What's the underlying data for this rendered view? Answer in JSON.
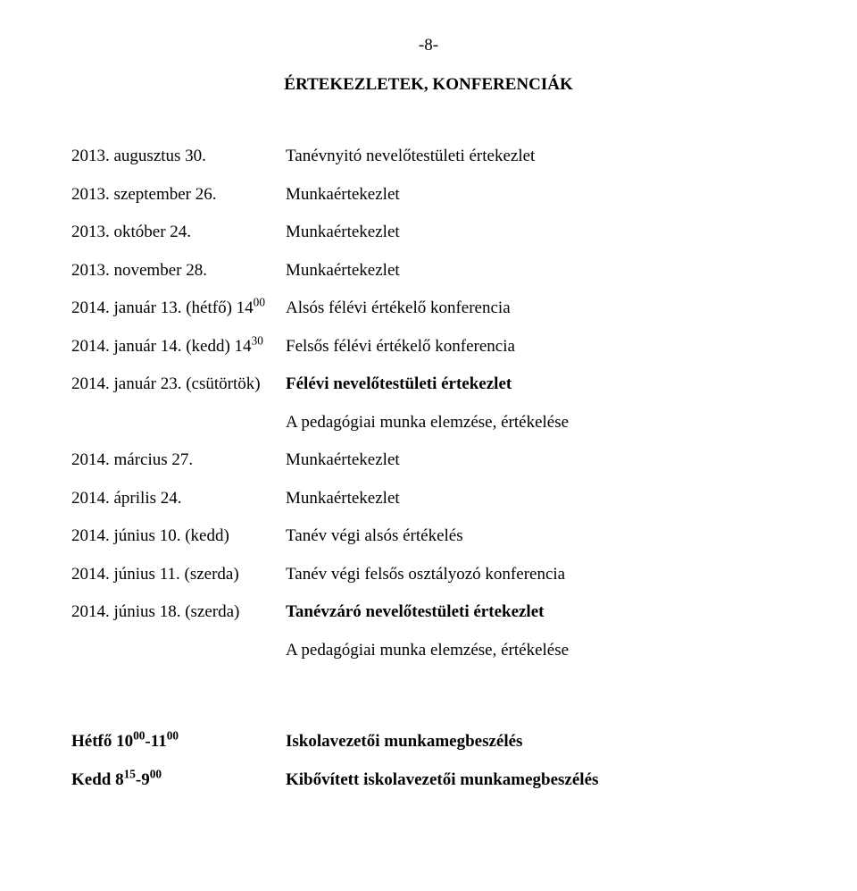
{
  "pageNumber": "-8-",
  "mainTitle": "ÉRTEKEZLETEK, KONFERENCIÁK",
  "schedule": [
    {
      "date": "2013. augusztus 30.",
      "desc": "Tanévnyitó nevelőtestületi értekezlet",
      "bold": false,
      "extra": null
    },
    {
      "date": "2013. szeptember 26.",
      "desc": "Munkaértekezlet",
      "bold": false,
      "extra": null
    },
    {
      "date": "2013. október 24.",
      "desc": "Munkaértekezlet",
      "bold": false,
      "extra": null
    },
    {
      "date": "2013. november 28.",
      "desc": "Munkaértekezlet",
      "bold": false,
      "extra": null
    },
    {
      "datePre": "2014. január 13. (hétfő) 14",
      "dateSup": "00",
      "desc": "Alsós félévi értékelő konferencia",
      "bold": false,
      "extra": null
    },
    {
      "datePre": "2014. január 14. (kedd) 14",
      "dateSup": "30",
      "desc": "Felsős félévi értékelő konferencia",
      "bold": false,
      "extra": null
    },
    {
      "date": "2014. január 23. (csütörtök)",
      "desc": "Félévi nevelőtestületi értekezlet",
      "bold": true,
      "extra": "A pedagógiai munka elemzése, értékelése"
    },
    {
      "date": "2014. március 27.",
      "desc": "Munkaértekezlet",
      "bold": false,
      "extra": null
    },
    {
      "date": "2014. április 24.",
      "desc": "Munkaértekezlet",
      "bold": false,
      "extra": null
    },
    {
      "date": "2014. június 10. (kedd)",
      "desc": "Tanév végi alsós értékelés",
      "bold": false,
      "extra": null
    },
    {
      "date": "2014. június 11. (szerda)",
      "desc": "Tanév végi felsős osztályozó konferencia",
      "bold": false,
      "extra": null
    },
    {
      "date": "2014. június 18. (szerda)",
      "desc": "Tanévzáró nevelőtestületi értekezlet",
      "bold": true,
      "extra": "A pedagógiai munka elemzése, értékelése"
    }
  ],
  "bottom": [
    {
      "datePre": "Hétfő 10",
      "dateSup1": "00",
      "dateMid": "-11",
      "dateSup2": "00",
      "desc": "Iskolavezetői munkamegbeszélés"
    },
    {
      "datePre": "Kedd 8",
      "dateSup1": "15",
      "dateMid": "-9",
      "dateSup2": "00",
      "desc": "Kibővített iskolavezetői munkamegbeszélés"
    }
  ]
}
